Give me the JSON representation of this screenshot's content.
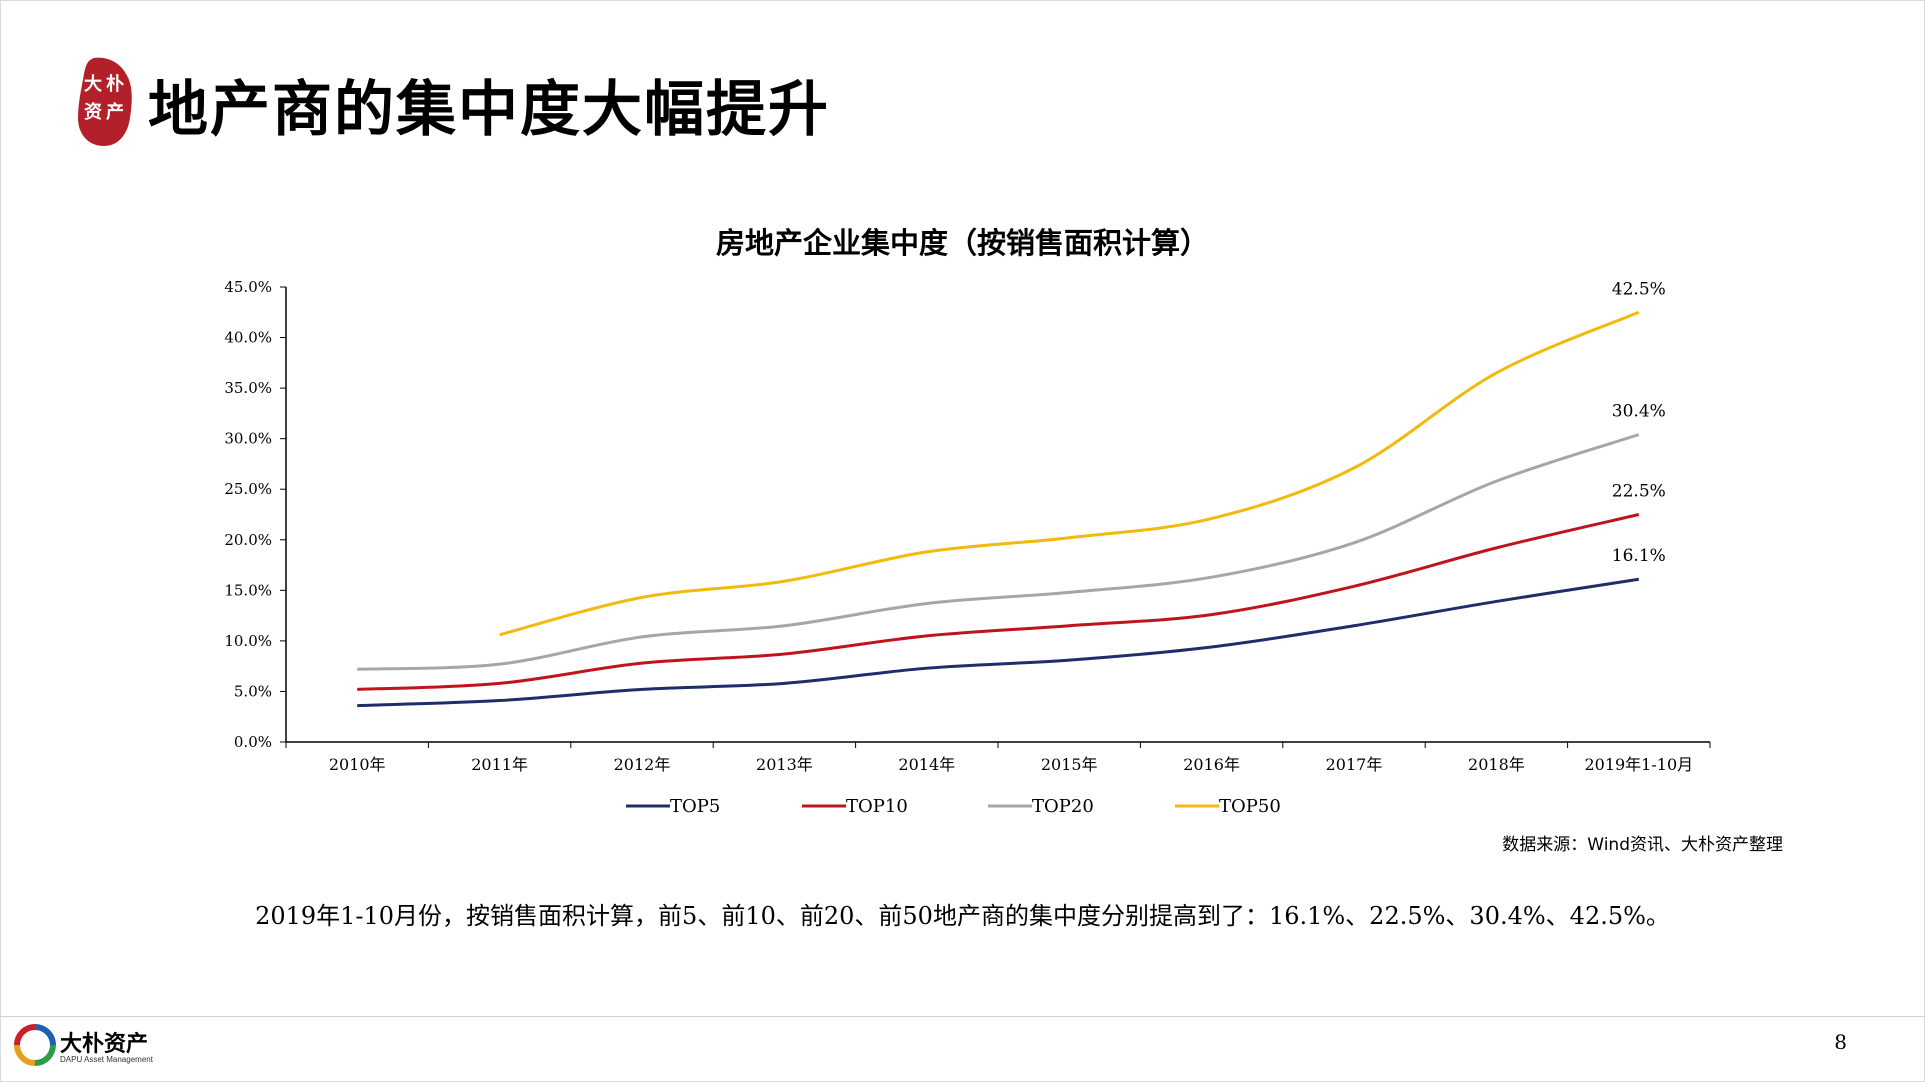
{
  "header": {
    "logo_text": "大朴资产",
    "title": "地产商的集中度大幅提升"
  },
  "chart_data": {
    "type": "line",
    "title": "房地产企业集中度（按销售面积计算）",
    "categories": [
      "2010年",
      "2011年",
      "2012年",
      "2013年",
      "2014年",
      "2015年",
      "2016年",
      "2017年",
      "2018年",
      "2019年1-10月"
    ],
    "y_ticks": [
      "0.0%",
      "5.0%",
      "10.0%",
      "15.0%",
      "20.0%",
      "25.0%",
      "30.0%",
      "35.0%",
      "40.0%",
      "45.0%"
    ],
    "ylim": [
      0,
      45
    ],
    "series": [
      {
        "name": "TOP5",
        "color": "#1f2d6b",
        "values": [
          3.6,
          4.1,
          5.2,
          5.8,
          7.3,
          8.1,
          9.4,
          11.5,
          13.9,
          16.1
        ]
      },
      {
        "name": "TOP10",
        "color": "#c0141c",
        "values": [
          5.2,
          5.8,
          7.8,
          8.7,
          10.5,
          11.5,
          12.6,
          15.4,
          19.2,
          22.5
        ]
      },
      {
        "name": "TOP20",
        "color": "#a6a6a6",
        "values": [
          7.2,
          7.7,
          10.4,
          11.5,
          13.7,
          14.8,
          16.3,
          19.7,
          25.8,
          30.4
        ]
      },
      {
        "name": "TOP50",
        "color": "#f2b90f",
        "values": [
          null,
          10.6,
          14.3,
          15.9,
          18.8,
          20.2,
          22.1,
          27.1,
          36.5,
          42.5
        ]
      }
    ],
    "end_labels": [
      "16.1%",
      "22.5%",
      "30.4%",
      "42.5%"
    ],
    "legend_position": "bottom",
    "grid": false
  },
  "source_note": "数据来源：Wind资讯、大朴资产整理",
  "summary": "2019年1-10月份，按销售面积计算，前5、前10、前20、前50地产商的集中度分别提高到了：16.1%、22.5%、30.4%、42.5%。",
  "footer": {
    "brand_cn": "大朴资产",
    "brand_en": "DAPU Asset Management",
    "page_number": "8"
  }
}
